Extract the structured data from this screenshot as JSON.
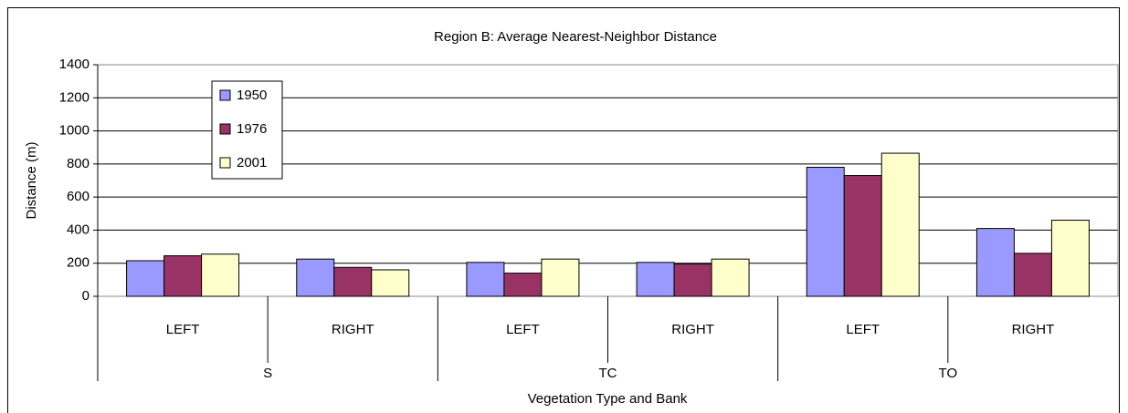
{
  "chart_data": {
    "type": "bar",
    "title": "Region B: Average Nearest-Neighbor Distance",
    "x_label": "Vegetation Type and Bank",
    "y_label": "Distance (m)",
    "categories": [
      "LEFT",
      "RIGHT",
      "LEFT",
      "RIGHT",
      "LEFT",
      "RIGHT"
    ],
    "groups": [
      "S",
      "TC",
      "TO"
    ],
    "series": [
      {
        "name": "1950",
        "color": "#9999ff",
        "values": [
          215,
          225,
          205,
          205,
          780,
          410
        ]
      },
      {
        "name": "1976",
        "color": "#993366",
        "values": [
          245,
          175,
          140,
          195,
          730,
          260
        ]
      },
      {
        "name": "2001",
        "color": "#ffffcc",
        "values": [
          255,
          160,
          225,
          225,
          865,
          460
        ]
      }
    ],
    "ylim": [
      0,
      1400
    ],
    "yticks": [
      0,
      200,
      400,
      600,
      800,
      1000,
      1200,
      1400
    ],
    "grid": true,
    "legend": "upper-left"
  }
}
